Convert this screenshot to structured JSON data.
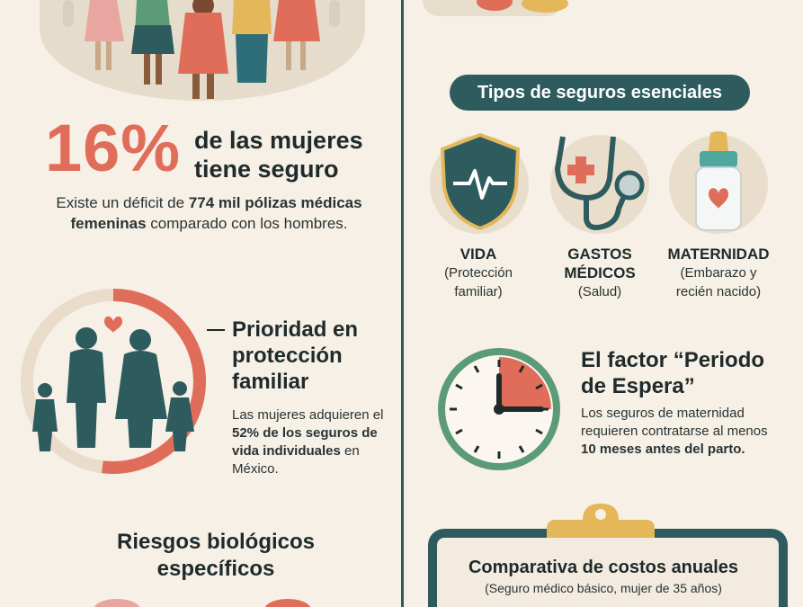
{
  "left": {
    "stat": {
      "value": "16%",
      "text_line1": "de las mujeres",
      "text_line2": "tiene seguro"
    },
    "deficit": {
      "pre": "Existe un déficit de",
      "bold1": "774 mil pólizas médicas femeninas",
      "post": "comparado con los hombres."
    },
    "priority": {
      "title": "Prioridad en protección familiar",
      "text_pre": "Las mujeres adquieren el",
      "text_bold": "52% de los seguros de vida individuales",
      "text_post": "en México.",
      "ring_percent": 52
    },
    "risks_title": "Riesgos biológicos específicos"
  },
  "right": {
    "types_title": "Tipos de seguros esenciales",
    "insurance_types": [
      {
        "title": "VIDA",
        "desc": "(Protección familiar)",
        "icon": "shield-heartbeat-icon"
      },
      {
        "title": "GASTOS MÉDICOS",
        "desc": "(Salud)",
        "icon": "stethoscope-icon"
      },
      {
        "title": "MATERNIDAD",
        "desc": "(Embarazo y recién nacido)",
        "icon": "baby-bottle-icon"
      }
    ],
    "factor": {
      "title": "El factor “Periodo de Espera”",
      "text_pre": "Los seguros de maternidad requieren contratarse al menos",
      "text_bold": "10 meses antes del parto."
    },
    "comparison": {
      "title": "Comparativa de costos anuales",
      "subtitle": "(Seguro médico básico, mujer de 35 años)"
    }
  },
  "colors": {
    "background": "#f6f0e6",
    "teal": "#2e5c5e",
    "coral": "#e06d5a",
    "gold": "#e3b75a"
  }
}
